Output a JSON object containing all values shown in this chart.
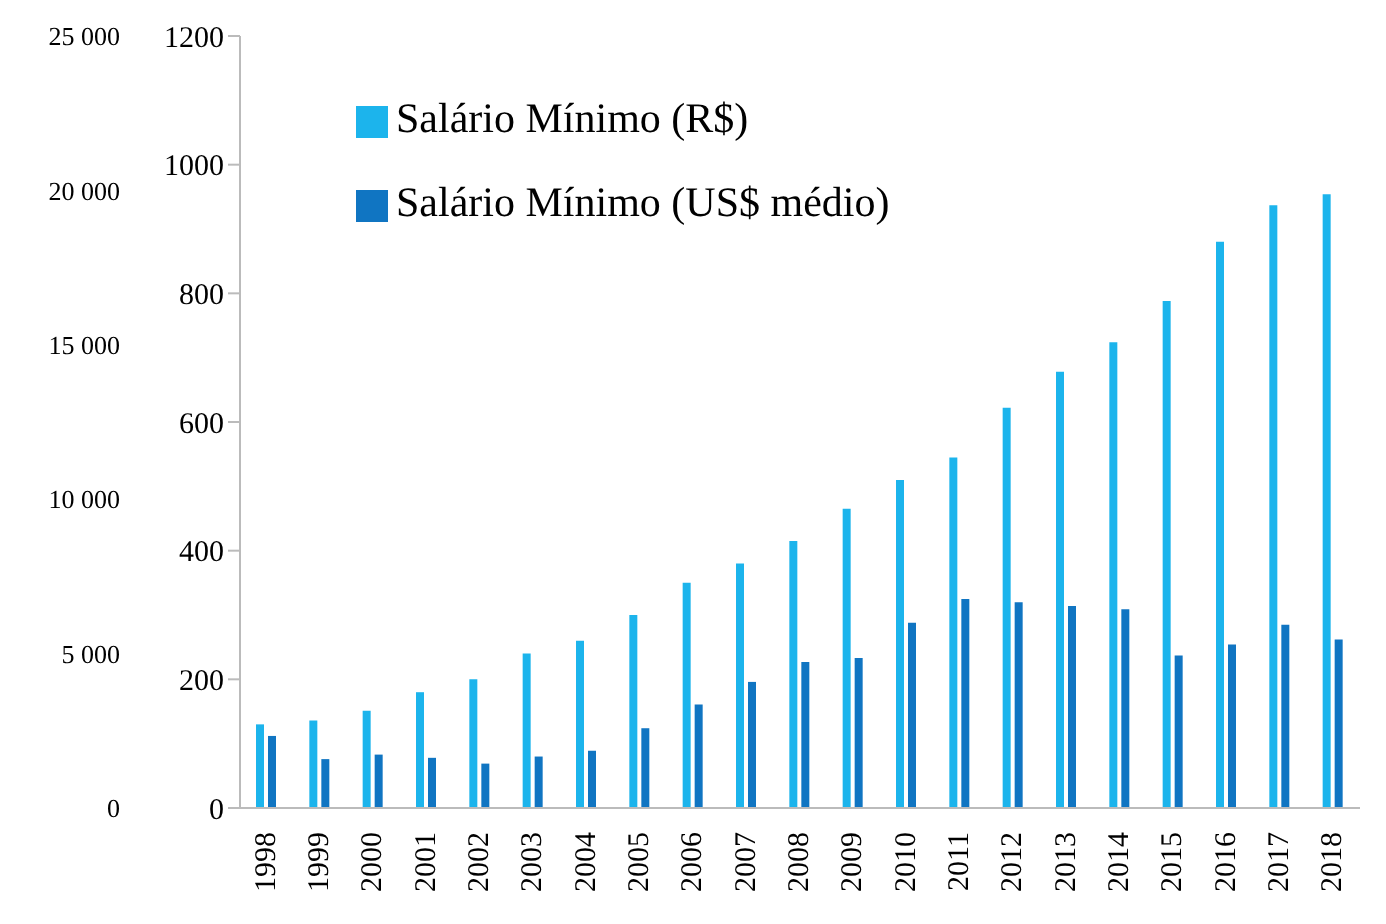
{
  "chart_data": {
    "type": "bar",
    "categories": [
      "1998",
      "1999",
      "2000",
      "2001",
      "2002",
      "2003",
      "2004",
      "2005",
      "2006",
      "2007",
      "2008",
      "2009",
      "2010",
      "2011",
      "2012",
      "2013",
      "2014",
      "2015",
      "2016",
      "2017",
      "2018"
    ],
    "series": [
      {
        "name": "Salário Mínimo (R$)",
        "color": "#1cb4ec",
        "values": [
          130,
          136,
          151,
          180,
          200,
          240,
          260,
          300,
          350,
          380,
          415,
          465,
          510,
          545,
          622,
          678,
          724,
          788,
          880,
          937,
          954
        ]
      },
      {
        "name": "Salário Mínimo (US$ médio)",
        "color": "#1075c2",
        "values": [
          112,
          76,
          83,
          78,
          69,
          80,
          89,
          124,
          161,
          196,
          227,
          233,
          288,
          325,
          320,
          314,
          309,
          237,
          254,
          285,
          262
        ]
      }
    ],
    "ylim": [
      0,
      1200
    ],
    "yticks": [
      0,
      200,
      400,
      600,
      800,
      1000,
      1200
    ],
    "y2lim": [
      0,
      25000
    ],
    "y2ticks": [
      0,
      {
        "value": 5000,
        "label": "5 000"
      },
      {
        "value": 10000,
        "label": "10 000"
      },
      {
        "value": 15000,
        "label": "15 000"
      },
      {
        "value": 20000,
        "label": "20 000"
      },
      {
        "value": 25000,
        "label": "25 000"
      }
    ],
    "legend": "top left",
    "grid": false
  }
}
